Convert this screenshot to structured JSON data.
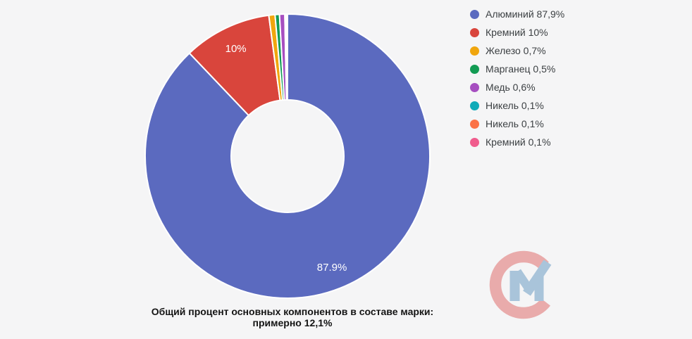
{
  "background_color": "#f5f5f6",
  "chart_data": {
    "type": "pie",
    "subtype": "donut",
    "start_angle_deg": 0,
    "direction": "clockwise",
    "legend_position": "right",
    "slices": [
      {
        "name": "Алюминий",
        "value": 87.9,
        "color": "#5b6abf",
        "legend_label": "Алюминий 87,9%",
        "data_label": "87.9%"
      },
      {
        "name": "Кремний",
        "value": 10,
        "color": "#d9453c",
        "legend_label": "Кремний 10%",
        "data_label": "10%"
      },
      {
        "name": "Железо",
        "value": 0.7,
        "color": "#f0a60e",
        "legend_label": "Железо 0,7%",
        "data_label": null
      },
      {
        "name": "Марганец",
        "value": 0.5,
        "color": "#129b53",
        "legend_label": "Марганец 0,5%",
        "data_label": null
      },
      {
        "name": "Медь",
        "value": 0.6,
        "color": "#a64ec0",
        "legend_label": "Медь 0,6%",
        "data_label": null
      },
      {
        "name": "Никель",
        "value": 0.1,
        "color": "#0fabb8",
        "legend_label": "Никель 0,1%",
        "data_label": null
      },
      {
        "name": "Никель2",
        "value": 0.1,
        "color": "#fb7246",
        "legend_label": "Никель 0,1%",
        "data_label": null
      },
      {
        "name": "Кремний2",
        "value": 0.1,
        "color": "#f05c8d",
        "legend_label": "Кремний 0,1%",
        "data_label": null
      }
    ],
    "slice_border_color": "#ffffff",
    "data_label_color": "#ffffff"
  },
  "caption": {
    "text": "Общий процент основных компонентов в составе марки: примерно 12,1%"
  },
  "watermark": {
    "description": "CM logo watermark",
    "c_color": "#e9abab",
    "m_color": "#a9c4da"
  }
}
